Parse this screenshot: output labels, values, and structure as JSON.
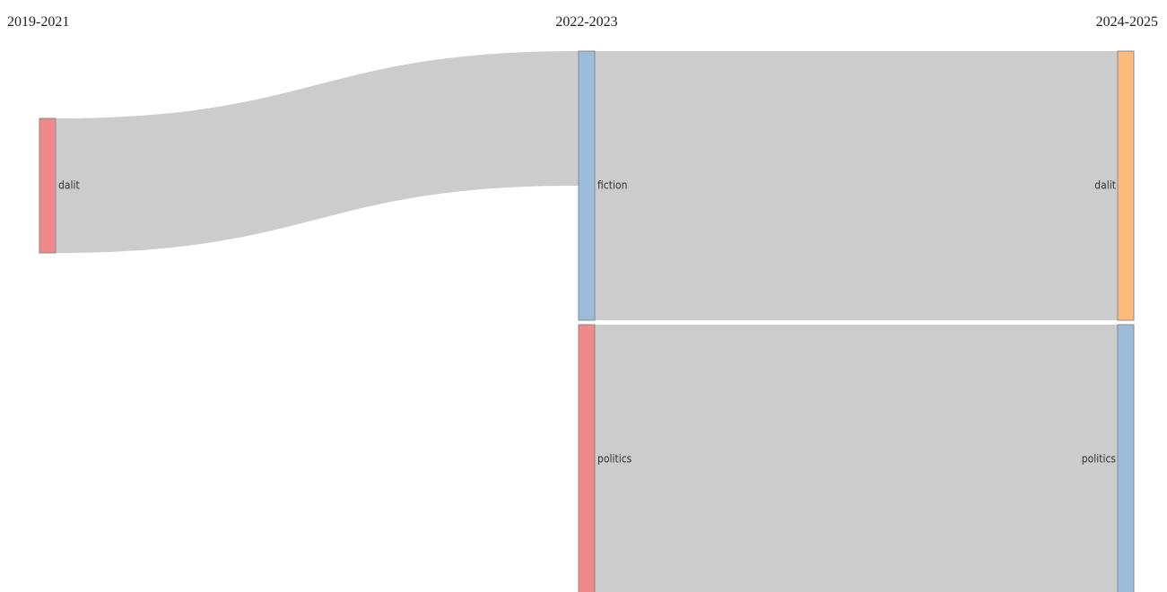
{
  "chart_data": {
    "type": "sankey",
    "columns": [
      "2019-2021",
      "2022-2023",
      "2024-2025"
    ],
    "nodes": [
      {
        "name": "dalit",
        "column": 0,
        "color": "#f08a8a"
      },
      {
        "name": "fiction",
        "column": 1,
        "color": "#9dbcdc"
      },
      {
        "name": "politics",
        "column": 1,
        "color": "#f08a8a"
      },
      {
        "name": "dalit",
        "column": 2,
        "color": "#fdbb7b"
      },
      {
        "name": "politics",
        "column": 2,
        "color": "#9dbcdc"
      }
    ],
    "links": [
      {
        "source": 0,
        "target": 1,
        "value": 1
      },
      {
        "source": 1,
        "target": 3,
        "value": 2
      },
      {
        "source": 2,
        "target": 4,
        "value": 2
      }
    ],
    "link_color": "#cccccc"
  }
}
